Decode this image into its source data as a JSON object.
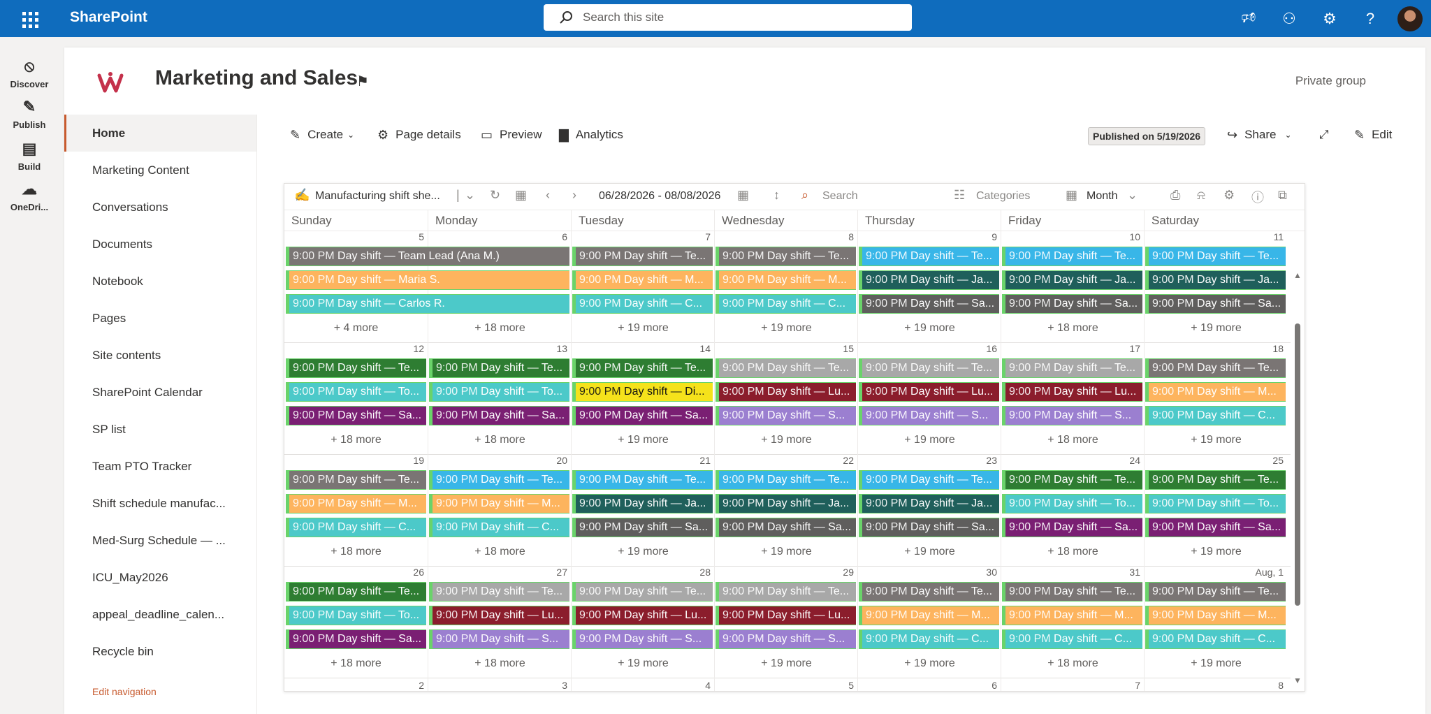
{
  "suitebar": {
    "brand": "SharePoint",
    "search_placeholder": "Search this site"
  },
  "appbar": [
    {
      "label": "Discover",
      "icon": "compass-icon"
    },
    {
      "label": "Publish",
      "icon": "pen-icon"
    },
    {
      "label": "Build",
      "icon": "layout-icon"
    },
    {
      "label": "OneDri...",
      "icon": "cloud-icon"
    }
  ],
  "site": {
    "title": "Marketing and Sales",
    "privacy": "Private group"
  },
  "nav": {
    "items": [
      "Home",
      "Marketing Content",
      "Conversations",
      "Documents",
      "Notebook",
      "Pages",
      "Site contents",
      "SharePoint Calendar",
      "SP list",
      "Team PTO Tracker",
      "Shift schedule manufac...",
      "Med-Surg Schedule — ...",
      "ICU_May2026",
      "appeal_deadline_calen...",
      "Recycle bin"
    ],
    "edit_label": "Edit navigation"
  },
  "commands": {
    "create": "Create",
    "page_details": "Page details",
    "preview": "Preview",
    "analytics": "Analytics",
    "published": "Published on 5/19/2026",
    "share": "Share",
    "edit": "Edit"
  },
  "calendar": {
    "source": "Manufacturing shift she...",
    "range": "06/28/2026 - 08/08/2026",
    "search": "Search",
    "categories": "Categories",
    "view": "Month",
    "weekdays": [
      "Sunday",
      "Monday",
      "Tuesday",
      "Wednesday",
      "Thursday",
      "Friday",
      "Saturday"
    ],
    "colors": {
      "gray": "#7a7574",
      "orange": "#fdb45e",
      "teal": "#4cc9c9",
      "green": "#2e7d32",
      "cyan": "#38b6e8",
      "darkteal": "#1f5f5b",
      "darkgray": "#5f5e5d",
      "yellow": "#f5e21b",
      "maroon": "#8b1d2c",
      "purple": "#7a1f73",
      "lightgray": "#a8a8a8",
      "lavender": "#9b7fd0"
    },
    "weeks": [
      {
        "days": [
          "5",
          "6",
          "7",
          "8",
          "9",
          "10",
          "11"
        ],
        "more": [
          "+ 4 more",
          "+ 18 more",
          "+ 19 more",
          "+ 19 more",
          "+ 19 more",
          "+ 18 more",
          "+ 19 more"
        ],
        "events": [
          {
            "day": 0,
            "row": 0,
            "wide": true,
            "color": "gray",
            "time": "9:00 PM",
            "title": "Day shift — Team Lead (Ana M.)"
          },
          {
            "day": 0,
            "row": 1,
            "wide": true,
            "color": "orange",
            "time": "9:00 PM",
            "title": "Day shift — Maria S."
          },
          {
            "day": 0,
            "row": 2,
            "wide": true,
            "color": "teal",
            "time": "9:00 PM",
            "title": "Day shift — Carlos R."
          },
          {
            "day": 2,
            "row": 0,
            "color": "gray",
            "time": "9:00 PM",
            "title": "Day shift — Te..."
          },
          {
            "day": 2,
            "row": 1,
            "color": "orange",
            "time": "9:00 PM",
            "title": "Day shift — M..."
          },
          {
            "day": 2,
            "row": 2,
            "color": "teal",
            "time": "9:00 PM",
            "title": "Day shift — C..."
          },
          {
            "day": 3,
            "row": 0,
            "color": "gray",
            "time": "9:00 PM",
            "title": "Day shift — Te..."
          },
          {
            "day": 3,
            "row": 1,
            "color": "orange",
            "time": "9:00 PM",
            "title": "Day shift — M..."
          },
          {
            "day": 3,
            "row": 2,
            "color": "teal",
            "time": "9:00 PM",
            "title": "Day shift — C..."
          },
          {
            "day": 4,
            "row": 0,
            "color": "cyan",
            "time": "9:00 PM",
            "title": "Day shift — Te..."
          },
          {
            "day": 4,
            "row": 1,
            "color": "darkteal",
            "time": "9:00 PM",
            "title": "Day shift — Ja..."
          },
          {
            "day": 4,
            "row": 2,
            "color": "darkgray",
            "time": "9:00 PM",
            "title": "Day shift — Sa..."
          },
          {
            "day": 5,
            "row": 0,
            "color": "cyan",
            "time": "9:00 PM",
            "title": "Day shift — Te..."
          },
          {
            "day": 5,
            "row": 1,
            "color": "darkteal",
            "time": "9:00 PM",
            "title": "Day shift — Ja..."
          },
          {
            "day": 5,
            "row": 2,
            "color": "darkgray",
            "time": "9:00 PM",
            "title": "Day shift — Sa..."
          },
          {
            "day": 6,
            "row": 0,
            "color": "cyan",
            "time": "9:00 PM",
            "title": "Day shift — Te..."
          },
          {
            "day": 6,
            "row": 1,
            "color": "darkteal",
            "time": "9:00 PM",
            "title": "Day shift — Ja..."
          },
          {
            "day": 6,
            "row": 2,
            "color": "darkgray",
            "time": "9:00 PM",
            "title": "Day shift — Sa..."
          }
        ]
      },
      {
        "days": [
          "12",
          "13",
          "14",
          "15",
          "16",
          "17",
          "18"
        ],
        "more": [
          "+ 18 more",
          "+ 18 more",
          "+ 19 more",
          "+ 19 more",
          "+ 19 more",
          "+ 18 more",
          "+ 19 more"
        ],
        "events": [
          {
            "day": 0,
            "row": 0,
            "color": "green",
            "time": "9:00 PM",
            "title": "Day shift — Te..."
          },
          {
            "day": 0,
            "row": 1,
            "color": "teal",
            "time": "9:00 PM",
            "title": "Day shift — To..."
          },
          {
            "day": 0,
            "row": 2,
            "color": "purple",
            "time": "9:00 PM",
            "title": "Day shift — Sa..."
          },
          {
            "day": 1,
            "row": 0,
            "color": "green",
            "time": "9:00 PM",
            "title": "Day shift — Te..."
          },
          {
            "day": 1,
            "row": 1,
            "color": "teal",
            "time": "9:00 PM",
            "title": "Day shift — To..."
          },
          {
            "day": 1,
            "row": 2,
            "color": "purple",
            "time": "9:00 PM",
            "title": "Day shift — Sa..."
          },
          {
            "day": 2,
            "row": 0,
            "color": "green",
            "time": "9:00 PM",
            "title": "Day shift — Te..."
          },
          {
            "day": 2,
            "row": 1,
            "color": "yellow",
            "time": "9:00 PM",
            "title": "Day shift — Di..."
          },
          {
            "day": 2,
            "row": 2,
            "color": "purple",
            "time": "9:00 PM",
            "title": "Day shift — Sa..."
          },
          {
            "day": 3,
            "row": 0,
            "color": "lightgray",
            "time": "9:00 PM",
            "title": "Day shift — Te..."
          },
          {
            "day": 3,
            "row": 1,
            "color": "maroon",
            "time": "9:00 PM",
            "title": "Day shift — Lu..."
          },
          {
            "day": 3,
            "row": 2,
            "color": "lavender",
            "time": "9:00 PM",
            "title": "Day shift — S..."
          },
          {
            "day": 4,
            "row": 0,
            "color": "lightgray",
            "time": "9:00 PM",
            "title": "Day shift — Te..."
          },
          {
            "day": 4,
            "row": 1,
            "color": "maroon",
            "time": "9:00 PM",
            "title": "Day shift — Lu..."
          },
          {
            "day": 4,
            "row": 2,
            "color": "lavender",
            "time": "9:00 PM",
            "title": "Day shift — S..."
          },
          {
            "day": 5,
            "row": 0,
            "color": "lightgray",
            "time": "9:00 PM",
            "title": "Day shift — Te..."
          },
          {
            "day": 5,
            "row": 1,
            "color": "maroon",
            "time": "9:00 PM",
            "title": "Day shift — Lu..."
          },
          {
            "day": 5,
            "row": 2,
            "color": "lavender",
            "time": "9:00 PM",
            "title": "Day shift — S..."
          },
          {
            "day": 6,
            "row": 0,
            "color": "gray",
            "time": "9:00 PM",
            "title": "Day shift — Te..."
          },
          {
            "day": 6,
            "row": 1,
            "color": "orange",
            "time": "9:00 PM",
            "title": "Day shift — M..."
          },
          {
            "day": 6,
            "row": 2,
            "color": "teal",
            "time": "9:00 PM",
            "title": "Day shift — C..."
          }
        ]
      },
      {
        "days": [
          "19",
          "20",
          "21",
          "22",
          "23",
          "24",
          "25"
        ],
        "more": [
          "+ 18 more",
          "+ 18 more",
          "+ 19 more",
          "+ 19 more",
          "+ 19 more",
          "+ 18 more",
          "+ 19 more"
        ],
        "events": [
          {
            "day": 0,
            "row": 0,
            "color": "gray",
            "time": "9:00 PM",
            "title": "Day shift — Te..."
          },
          {
            "day": 0,
            "row": 1,
            "color": "orange",
            "time": "9:00 PM",
            "title": "Day shift — M..."
          },
          {
            "day": 0,
            "row": 2,
            "color": "teal",
            "time": "9:00 PM",
            "title": "Day shift — C..."
          },
          {
            "day": 1,
            "row": 0,
            "color": "cyan",
            "time": "9:00 PM",
            "title": "Day shift — Te..."
          },
          {
            "day": 1,
            "row": 1,
            "color": "orange",
            "time": "9:00 PM",
            "title": "Day shift — M..."
          },
          {
            "day": 1,
            "row": 2,
            "color": "teal",
            "time": "9:00 PM",
            "title": "Day shift — C..."
          },
          {
            "day": 2,
            "row": 0,
            "color": "cyan",
            "time": "9:00 PM",
            "title": "Day shift — Te..."
          },
          {
            "day": 2,
            "row": 1,
            "color": "darkteal",
            "time": "9:00 PM",
            "title": "Day shift — Ja..."
          },
          {
            "day": 2,
            "row": 2,
            "color": "darkgray",
            "time": "9:00 PM",
            "title": "Day shift — Sa..."
          },
          {
            "day": 3,
            "row": 0,
            "color": "cyan",
            "time": "9:00 PM",
            "title": "Day shift — Te..."
          },
          {
            "day": 3,
            "row": 1,
            "color": "darkteal",
            "time": "9:00 PM",
            "title": "Day shift — Ja..."
          },
          {
            "day": 3,
            "row": 2,
            "color": "darkgray",
            "time": "9:00 PM",
            "title": "Day shift — Sa..."
          },
          {
            "day": 4,
            "row": 0,
            "color": "cyan",
            "time": "9:00 PM",
            "title": "Day shift — Te..."
          },
          {
            "day": 4,
            "row": 1,
            "color": "darkteal",
            "time": "9:00 PM",
            "title": "Day shift — Ja..."
          },
          {
            "day": 4,
            "row": 2,
            "color": "darkgray",
            "time": "9:00 PM",
            "title": "Day shift — Sa..."
          },
          {
            "day": 5,
            "row": 0,
            "color": "green",
            "time": "9:00 PM",
            "title": "Day shift — Te..."
          },
          {
            "day": 5,
            "row": 1,
            "color": "teal",
            "time": "9:00 PM",
            "title": "Day shift — To..."
          },
          {
            "day": 5,
            "row": 2,
            "color": "purple",
            "time": "9:00 PM",
            "title": "Day shift — Sa..."
          },
          {
            "day": 6,
            "row": 0,
            "color": "green",
            "time": "9:00 PM",
            "title": "Day shift — Te..."
          },
          {
            "day": 6,
            "row": 1,
            "color": "teal",
            "time": "9:00 PM",
            "title": "Day shift — To..."
          },
          {
            "day": 6,
            "row": 2,
            "color": "purple",
            "time": "9:00 PM",
            "title": "Day shift — Sa..."
          }
        ]
      },
      {
        "days": [
          "26",
          "27",
          "28",
          "29",
          "30",
          "31",
          "Aug, 1"
        ],
        "more": [
          "+ 18 more",
          "+ 18 more",
          "+ 19 more",
          "+ 19 more",
          "+ 19 more",
          "+ 18 more",
          "+ 19 more"
        ],
        "events": [
          {
            "day": 0,
            "row": 0,
            "color": "green",
            "time": "9:00 PM",
            "title": "Day shift — Te..."
          },
          {
            "day": 0,
            "row": 1,
            "color": "teal",
            "time": "9:00 PM",
            "title": "Day shift — To..."
          },
          {
            "day": 0,
            "row": 2,
            "color": "purple",
            "time": "9:00 PM",
            "title": "Day shift — Sa..."
          },
          {
            "day": 1,
            "row": 0,
            "color": "lightgray",
            "time": "9:00 PM",
            "title": "Day shift — Te..."
          },
          {
            "day": 1,
            "row": 1,
            "color": "maroon",
            "time": "9:00 PM",
            "title": "Day shift — Lu..."
          },
          {
            "day": 1,
            "row": 2,
            "color": "lavender",
            "time": "9:00 PM",
            "title": "Day shift — S..."
          },
          {
            "day": 2,
            "row": 0,
            "color": "lightgray",
            "time": "9:00 PM",
            "title": "Day shift — Te..."
          },
          {
            "day": 2,
            "row": 1,
            "color": "maroon",
            "time": "9:00 PM",
            "title": "Day shift — Lu..."
          },
          {
            "day": 2,
            "row": 2,
            "color": "lavender",
            "time": "9:00 PM",
            "title": "Day shift — S..."
          },
          {
            "day": 3,
            "row": 0,
            "color": "lightgray",
            "time": "9:00 PM",
            "title": "Day shift — Te..."
          },
          {
            "day": 3,
            "row": 1,
            "color": "maroon",
            "time": "9:00 PM",
            "title": "Day shift — Lu..."
          },
          {
            "day": 3,
            "row": 2,
            "color": "lavender",
            "time": "9:00 PM",
            "title": "Day shift — S..."
          },
          {
            "day": 4,
            "row": 0,
            "color": "gray",
            "time": "9:00 PM",
            "title": "Day shift — Te..."
          },
          {
            "day": 4,
            "row": 1,
            "color": "orange",
            "time": "9:00 PM",
            "title": "Day shift — M..."
          },
          {
            "day": 4,
            "row": 2,
            "color": "teal",
            "time": "9:00 PM",
            "title": "Day shift — C..."
          },
          {
            "day": 5,
            "row": 0,
            "color": "gray",
            "time": "9:00 PM",
            "title": "Day shift — Te..."
          },
          {
            "day": 5,
            "row": 1,
            "color": "orange",
            "time": "9:00 PM",
            "title": "Day shift — M..."
          },
          {
            "day": 5,
            "row": 2,
            "color": "teal",
            "time": "9:00 PM",
            "title": "Day shift — C..."
          },
          {
            "day": 6,
            "row": 0,
            "color": "gray",
            "time": "9:00 PM",
            "title": "Day shift — Te..."
          },
          {
            "day": 6,
            "row": 1,
            "color": "orange",
            "time": "9:00 PM",
            "title": "Day shift — M..."
          },
          {
            "day": 6,
            "row": 2,
            "color": "teal",
            "time": "9:00 PM",
            "title": "Day shift — C..."
          }
        ]
      }
    ],
    "next_days": [
      "2",
      "3",
      "4",
      "5",
      "6",
      "7",
      "8"
    ]
  }
}
